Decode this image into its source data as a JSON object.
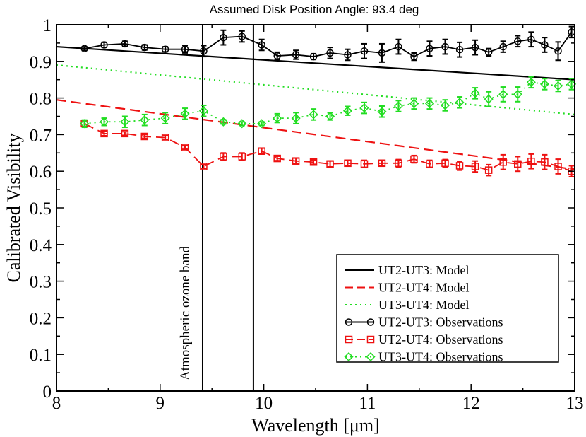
{
  "chart_data": {
    "type": "line",
    "title": "Assumed Disk Position Angle: 93.4 deg",
    "xlabel_prefix": "Wavelength [",
    "xlabel_unit": "μm",
    "xlabel_suffix": "]",
    "ylabel": "Calibrated Visibility",
    "xlim": [
      8,
      13
    ],
    "ylim": [
      0,
      1
    ],
    "xticks": [
      8,
      9,
      10,
      11,
      12,
      13
    ],
    "xtick_labels": [
      "8",
      "9",
      "10",
      "11",
      "12",
      "13"
    ],
    "yticks": [
      0,
      0.1,
      0.2,
      0.3,
      0.4,
      0.5,
      0.6,
      0.7,
      0.8,
      0.9,
      1
    ],
    "ytick_labels": [
      "0",
      "0.1",
      "0.2",
      "0.3",
      "0.4",
      "0.5",
      "0.6",
      "0.7",
      "0.8",
      "0.9",
      "1"
    ],
    "grid": false,
    "legend_position": "bottom-right",
    "vertical_lines": [
      9.41,
      9.9
    ],
    "annotation": "Atmospheric ozone band",
    "colors": {
      "black": "#000000",
      "red": "#ee1111",
      "green": "#22dd22"
    },
    "x": [
      8.27,
      8.46,
      8.66,
      8.85,
      9.05,
      9.24,
      9.42,
      9.61,
      9.79,
      9.98,
      10.13,
      10.31,
      10.48,
      10.64,
      10.81,
      10.97,
      11.14,
      11.3,
      11.45,
      11.6,
      11.75,
      11.89,
      12.04,
      12.17,
      12.31,
      12.45,
      12.58,
      12.71,
      12.84,
      12.97
    ],
    "models": [
      {
        "name": "UT2-UT3: Model",
        "style": "solid",
        "color": "#000000",
        "x": [
          8,
          13
        ],
        "y": [
          0.94,
          0.85
        ]
      },
      {
        "name": "UT2-UT4: Model",
        "style": "dashed",
        "color": "#ee1111",
        "x": [
          8,
          13
        ],
        "y": [
          0.795,
          0.605
        ]
      },
      {
        "name": "UT3-UT4: Model",
        "style": "dotted",
        "color": "#22dd22",
        "x": [
          8,
          13
        ],
        "y": [
          0.89,
          0.755
        ]
      }
    ],
    "series": [
      {
        "name": "UT2-UT3: Observations",
        "style": "solid",
        "marker": "circle",
        "color": "#000000",
        "values": [
          0.935,
          0.945,
          0.948,
          0.938,
          0.933,
          0.933,
          0.928,
          0.965,
          0.968,
          0.945,
          0.915,
          0.918,
          0.913,
          0.923,
          0.918,
          0.928,
          0.923,
          0.94,
          0.913,
          0.935,
          0.94,
          0.932,
          0.938,
          0.925,
          0.94,
          0.955,
          0.96,
          0.945,
          0.928,
          0.98
        ],
        "errors": [
          0.005,
          0.007,
          0.007,
          0.007,
          0.007,
          0.01,
          0.015,
          0.02,
          0.015,
          0.015,
          0.01,
          0.012,
          0.008,
          0.015,
          0.015,
          0.02,
          0.025,
          0.02,
          0.01,
          0.02,
          0.02,
          0.02,
          0.02,
          0.01,
          0.015,
          0.015,
          0.02,
          0.02,
          0.025,
          0.015
        ]
      },
      {
        "name": "UT2-UT4: Observations",
        "style": "dashed",
        "marker": "square",
        "color": "#ee1111",
        "values": [
          0.73,
          0.703,
          0.703,
          0.695,
          0.692,
          0.665,
          0.613,
          0.64,
          0.64,
          0.655,
          0.635,
          0.628,
          0.625,
          0.62,
          0.622,
          0.62,
          0.622,
          0.622,
          0.633,
          0.62,
          0.622,
          0.615,
          0.613,
          0.603,
          0.625,
          0.62,
          0.627,
          0.625,
          0.613,
          0.6
        ],
        "errors": [
          0.008,
          0.006,
          0.005,
          0.005,
          0.005,
          0.005,
          0.005,
          0.01,
          0.01,
          0.008,
          0.006,
          0.008,
          0.006,
          0.008,
          0.008,
          0.01,
          0.008,
          0.01,
          0.01,
          0.01,
          0.01,
          0.012,
          0.015,
          0.015,
          0.02,
          0.02,
          0.02,
          0.02,
          0.02,
          0.015
        ]
      },
      {
        "name": "UT3-UT4: Observations",
        "style": "dotted",
        "marker": "diamond",
        "color": "#22dd22",
        "values": [
          0.73,
          0.735,
          0.735,
          0.74,
          0.745,
          0.757,
          0.765,
          0.735,
          0.73,
          0.73,
          0.745,
          0.745,
          0.755,
          0.75,
          0.765,
          0.773,
          0.763,
          0.778,
          0.785,
          0.785,
          0.78,
          0.788,
          0.813,
          0.797,
          0.81,
          0.81,
          0.843,
          0.838,
          0.833,
          0.838
        ],
        "errors": [
          0.01,
          0.01,
          0.015,
          0.015,
          0.015,
          0.015,
          0.015,
          0.006,
          0.005,
          0.005,
          0.012,
          0.015,
          0.015,
          0.01,
          0.012,
          0.015,
          0.015,
          0.015,
          0.015,
          0.015,
          0.015,
          0.015,
          0.015,
          0.02,
          0.02,
          0.02,
          0.015,
          0.015,
          0.015,
          0.015
        ]
      }
    ]
  }
}
